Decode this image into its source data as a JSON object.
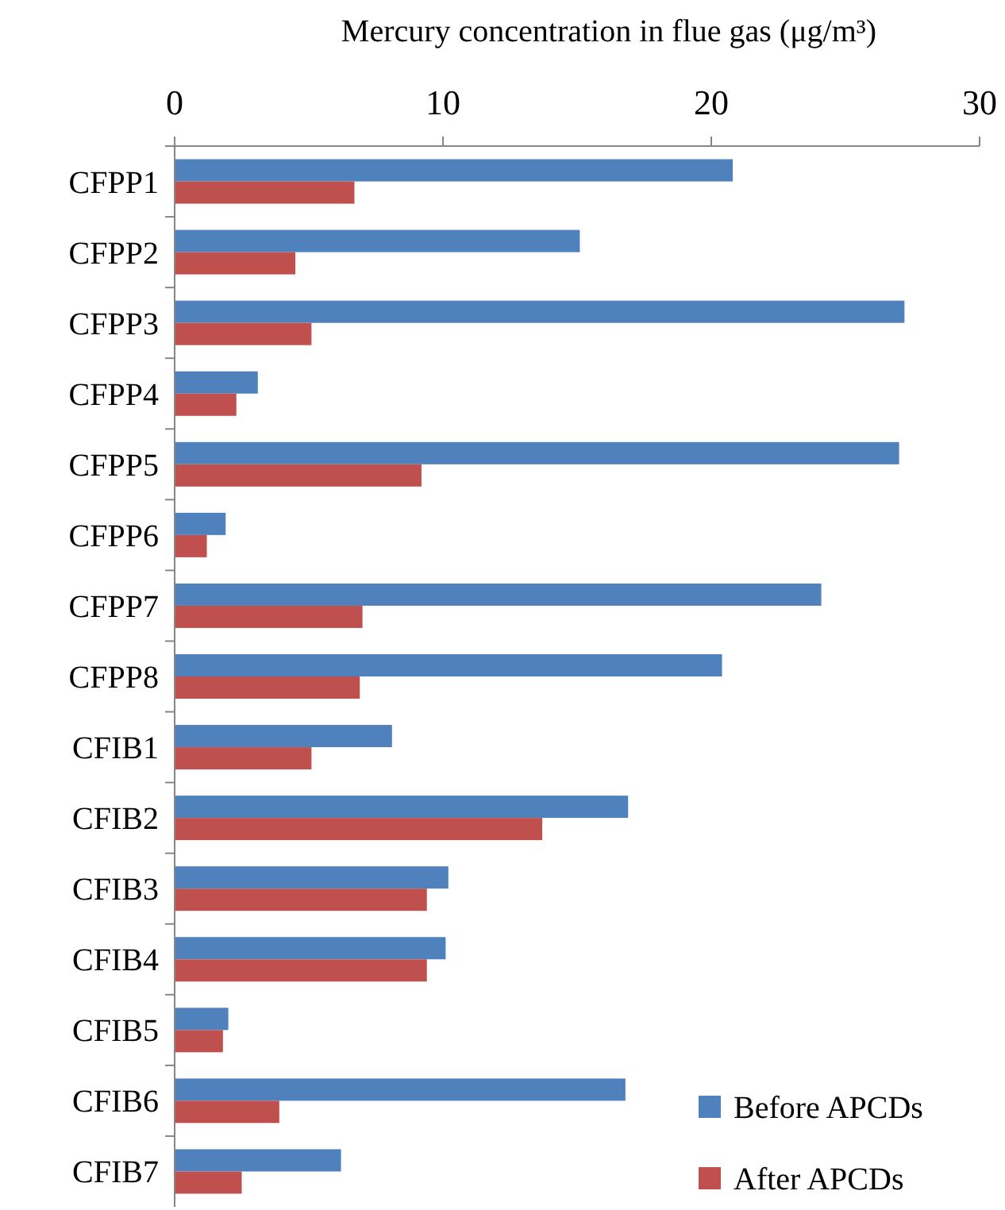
{
  "chart_data": {
    "type": "bar",
    "orientation": "horizontal",
    "xlabel": "Mercury concentration in flue gas   (μg/m³)",
    "categories": [
      "CFPP1",
      "CFPP2",
      "CFPP3",
      "CFPP4",
      "CFPP5",
      "CFPP6",
      "CFPP7",
      "CFPP8",
      "CFIB1",
      "CFIB2",
      "CFIB3",
      "CFIB4",
      "CFIB5",
      "CFIB6",
      "CFIB7"
    ],
    "series": [
      {
        "name": "Before APCDs",
        "color": "#4f81bd",
        "values": [
          20.8,
          15.1,
          27.2,
          3.1,
          27.0,
          1.9,
          24.1,
          20.4,
          8.1,
          16.9,
          10.2,
          10.1,
          2.0,
          16.8,
          6.2
        ]
      },
      {
        "name": "After APCDs",
        "color": "#c0504d",
        "values": [
          6.7,
          4.5,
          5.1,
          2.3,
          9.2,
          1.2,
          7.0,
          6.9,
          5.1,
          13.7,
          9.4,
          9.4,
          1.8,
          3.9,
          2.5
        ]
      }
    ],
    "xlim": [
      0,
      30
    ],
    "xticks": [
      0,
      10,
      20,
      30
    ],
    "grid": false,
    "legend": "bottom right"
  }
}
